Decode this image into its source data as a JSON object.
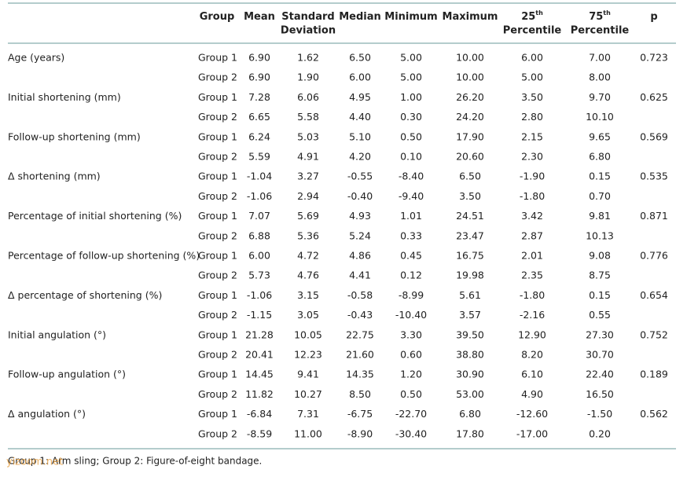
{
  "table": {
    "header": [
      {
        "text": "Group"
      },
      {
        "text": "Mean"
      },
      {
        "text": "Standard",
        "line2": "Deviation"
      },
      {
        "text": "Median"
      },
      {
        "text": "Minimum"
      },
      {
        "text": "Maximum"
      },
      {
        "text": "25",
        "sup": "th",
        "line2": "Percentile"
      },
      {
        "text": "75",
        "sup": "th",
        "line2": "Percentile"
      },
      {
        "text": "p"
      }
    ],
    "rows": [
      {
        "label": "Age (years)",
        "p": "0.723",
        "groups": [
          {
            "group": "Group 1",
            "values": [
              "6.90",
              "1.62",
              "6.50",
              "5.00",
              "10.00",
              "6.00",
              "7.00"
            ]
          },
          {
            "group": "Group 2",
            "values": [
              "6.90",
              "1.90",
              "6.00",
              "5.00",
              "10.00",
              "5.00",
              "8.00"
            ]
          }
        ]
      },
      {
        "label": "Initial shortening (mm)",
        "p": "0.625",
        "groups": [
          {
            "group": "Group 1",
            "values": [
              "7.28",
              "6.06",
              "4.95",
              "1.00",
              "26.20",
              "3.50",
              "9.70"
            ]
          },
          {
            "group": "Group 2",
            "values": [
              "6.65",
              "5.58",
              "4.40",
              "0.30",
              "24.20",
              "2.80",
              "10.10"
            ]
          }
        ]
      },
      {
        "label": "Follow-up shortening (mm)",
        "p": "0.569",
        "groups": [
          {
            "group": "Group 1",
            "values": [
              "6.24",
              "5.03",
              "5.10",
              "0.50",
              "17.90",
              "2.15",
              "9.65"
            ]
          },
          {
            "group": "Group 2",
            "values": [
              "5.59",
              "4.91",
              "4.20",
              "0.10",
              "20.60",
              "2.30",
              "6.80"
            ]
          }
        ]
      },
      {
        "label": "Δ shortening (mm)",
        "p": "0.535",
        "groups": [
          {
            "group": "Group 1",
            "values": [
              "-1.04",
              "3.27",
              "-0.55",
              "-8.40",
              "6.50",
              "-1.90",
              "0.15"
            ]
          },
          {
            "group": "Group 2",
            "values": [
              "-1.06",
              "2.94",
              "-0.40",
              "-9.40",
              "3.50",
              "-1.80",
              "0.70"
            ]
          }
        ]
      },
      {
        "label": "Percentage of initial shortening (%)",
        "p": "0.871",
        "groups": [
          {
            "group": "Group 1",
            "values": [
              "7.07",
              "5.69",
              "4.93",
              "1.01",
              "24.51",
              "3.42",
              "9.81"
            ]
          },
          {
            "group": "Group 2",
            "values": [
              "6.88",
              "5.36",
              "5.24",
              "0.33",
              "23.47",
              "2.87",
              "10.13"
            ]
          }
        ]
      },
      {
        "label": "Percentage of follow-up shortening (%)",
        "p": "0.776",
        "groups": [
          {
            "group": "Group 1",
            "values": [
              "6.00",
              "4.72",
              "4.86",
              "0.45",
              "16.75",
              "2.01",
              "9.08"
            ]
          },
          {
            "group": "Group 2",
            "values": [
              "5.73",
              "4.76",
              "4.41",
              "0.12",
              "19.98",
              "2.35",
              "8.75"
            ]
          }
        ]
      },
      {
        "label": "Δ percentage of shortening (%)",
        "p": "0.654",
        "groups": [
          {
            "group": "Group 1",
            "values": [
              "-1.06",
              "3.15",
              "-0.58",
              "-8.99",
              "5.61",
              "-1.80",
              "0.15"
            ]
          },
          {
            "group": "Group 2",
            "values": [
              "-1.15",
              "3.05",
              "-0.43",
              "-10.40",
              "3.57",
              "-2.16",
              "0.55"
            ]
          }
        ]
      },
      {
        "label": "Initial angulation (°)",
        "p": "0.752",
        "groups": [
          {
            "group": "Group 1",
            "values": [
              "21.28",
              "10.05",
              "22.75",
              "3.30",
              "39.50",
              "12.90",
              "27.30"
            ]
          },
          {
            "group": "Group 2",
            "values": [
              "20.41",
              "12.23",
              "21.60",
              "0.60",
              "38.80",
              "8.20",
              "30.70"
            ]
          }
        ]
      },
      {
        "label": "Follow-up angulation (°)",
        "p": "0.189",
        "groups": [
          {
            "group": "Group 1",
            "values": [
              "14.45",
              "9.41",
              "14.35",
              "1.20",
              "30.90",
              "6.10",
              "22.40"
            ]
          },
          {
            "group": "Group 2",
            "values": [
              "11.82",
              "10.27",
              "8.50",
              "0.50",
              "53.00",
              "4.90",
              "16.50"
            ]
          }
        ]
      },
      {
        "label": "Δ angulation (°)",
        "p": "0.562",
        "groups": [
          {
            "group": "Group 1",
            "values": [
              "-6.84",
              "7.31",
              "-6.75",
              "-22.70",
              "6.80",
              "-12.60",
              "-1.50"
            ]
          },
          {
            "group": "Group 2",
            "values": [
              "-8.59",
              "11.00",
              "-8.90",
              "-30.40",
              "17.80",
              "-17.00",
              "0.20"
            ]
          }
        ]
      }
    ],
    "footnote": "Group 1: Arm sling; Group 2: Figure-of-eight bandage.",
    "watermark": "yizoom.net"
  }
}
